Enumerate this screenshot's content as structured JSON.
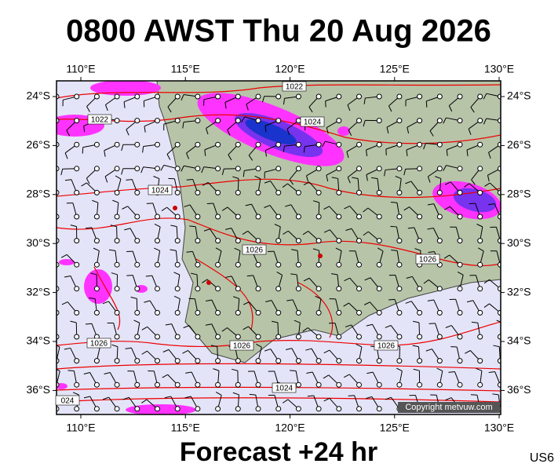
{
  "title": "0800 AWST Thu 20 Aug 2026",
  "footer": "Forecast +24 hr",
  "code": "US6",
  "copyright": "Copyright metvuw.com",
  "lon_ticks": [
    {
      "value": 110,
      "label": "110°E"
    },
    {
      "value": 115,
      "label": "115°E"
    },
    {
      "value": 120,
      "label": "120°E"
    },
    {
      "value": 125,
      "label": "125°E"
    },
    {
      "value": 130,
      "label": "130°E"
    }
  ],
  "lat_ticks": [
    {
      "value": -24,
      "label": "24°S"
    },
    {
      "value": -26,
      "label": "26°S"
    },
    {
      "value": -28,
      "label": "28°S"
    },
    {
      "value": -30,
      "label": "30°S"
    },
    {
      "value": -32,
      "label": "32°S"
    },
    {
      "value": -34,
      "label": "34°S"
    },
    {
      "value": -36,
      "label": "36°S"
    }
  ],
  "isobar_labels": [
    "1022",
    "1022",
    "1024",
    "1024",
    "1026",
    "1026",
    "1026",
    "1026",
    "1026",
    "1024",
    "024"
  ]
}
